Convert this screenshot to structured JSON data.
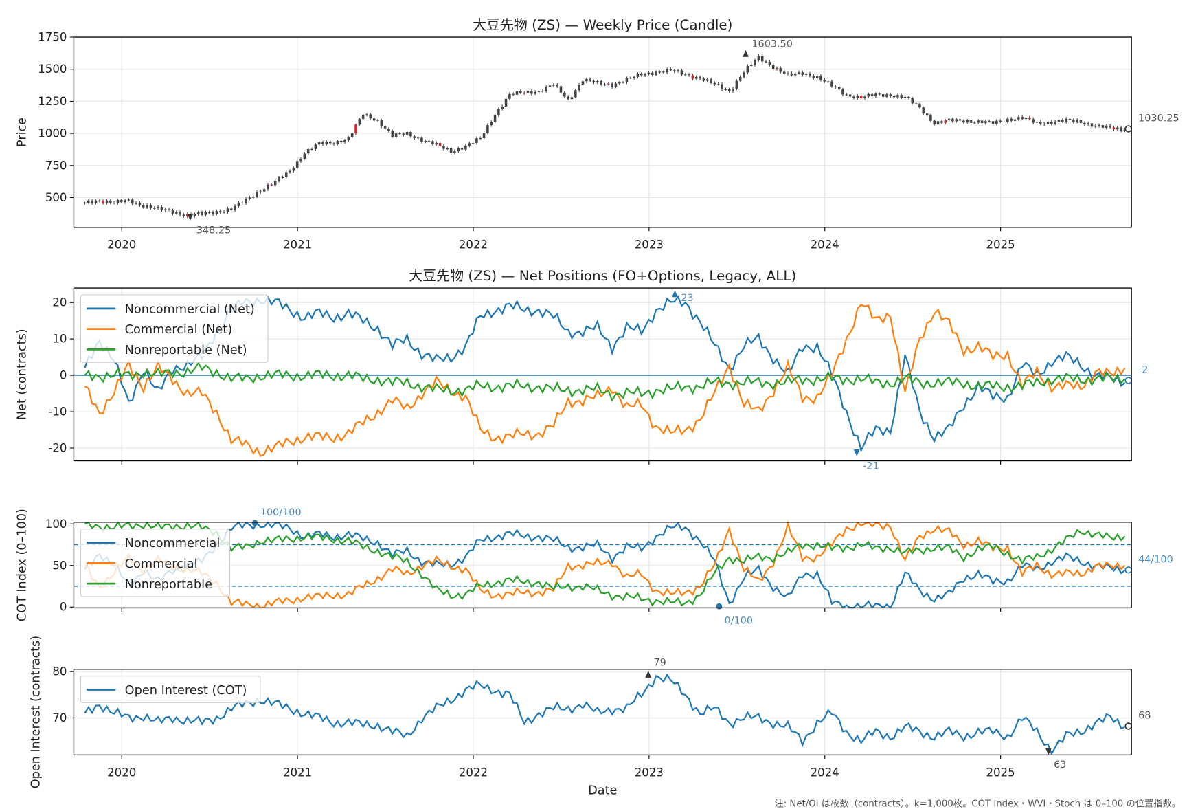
{
  "chart_data": [
    {
      "type": "candlestick",
      "title": "大豆先物 (ZS) — Weekly Price (Candle)",
      "ylabel": "Price",
      "xlabel": "",
      "ylim": [
        268,
        1750
      ],
      "yticks": [
        "500",
        "750",
        "1000",
        "1250",
        "1500",
        "1750"
      ],
      "xticks": [
        "2020",
        "2021",
        "2022",
        "2023",
        "2024",
        "2025"
      ],
      "start": "2019-10",
      "frequency": "monthly close (approx.)",
      "values": [
        460,
        480,
        460,
        475,
        440,
        410,
        390,
        360,
        370,
        390,
        410,
        480,
        560,
        620,
        710,
        850,
        920,
        930,
        960,
        1150,
        1100,
        980,
        1000,
        950,
        910,
        860,
        900,
        960,
        1150,
        1300,
        1320,
        1330,
        1380,
        1260,
        1420,
        1390,
        1380,
        1420,
        1460,
        1480,
        1490,
        1460,
        1430,
        1380,
        1330,
        1480,
        1590,
        1520,
        1450,
        1470,
        1440,
        1370,
        1300,
        1280,
        1300,
        1300,
        1280,
        1200,
        1080,
        1100,
        1100,
        1090,
        1080,
        1110,
        1120,
        1080,
        1090,
        1100,
        1090,
        1060,
        1040,
        1030
      ],
      "annotations": {
        "max": "1603.50",
        "min": "348.25",
        "last": "1030.25"
      }
    },
    {
      "type": "line",
      "title": "大豆先物 (ZS) — Net Positions (FO+Options, Legacy, ALL)",
      "ylabel": "Net (contracts)",
      "ylim": [
        -23.5,
        24
      ],
      "yticks": [
        "-20",
        "-10",
        "0",
        "10",
        "20"
      ],
      "series": [
        {
          "name": "Noncommercial (Net)",
          "color": "#1f77b4",
          "values": [
            2,
            10,
            4,
            -8,
            2,
            -5,
            2,
            3,
            5,
            12,
            18,
            20,
            21,
            20,
            18,
            16,
            17,
            16,
            17,
            15,
            13,
            8,
            10,
            6,
            4,
            5,
            8,
            16,
            18,
            19,
            18,
            18,
            16,
            12,
            12,
            13,
            8,
            13,
            12,
            18,
            20,
            20,
            15,
            8,
            2,
            8,
            10,
            5,
            0,
            8,
            8,
            0,
            -10,
            -20,
            -15,
            -15,
            5,
            -10,
            -17,
            -15,
            -8,
            -3,
            -6,
            -6,
            3,
            0,
            4,
            5,
            3,
            0,
            -1,
            -2
          ]
        },
        {
          "name": "Commercial (Net)",
          "color": "#ff7f0e",
          "values": [
            -3,
            -10,
            -5,
            3,
            -3,
            2,
            -1,
            -5,
            -5,
            -10,
            -18,
            -19,
            -21,
            -20,
            -18,
            -17,
            -17,
            -17,
            -16,
            -13,
            -10,
            -7,
            -9,
            -5,
            -2,
            -4,
            -6,
            -15,
            -17,
            -17,
            -16,
            -16,
            -14,
            -7,
            -7,
            -6,
            -3,
            -9,
            -8,
            -14,
            -16,
            -15,
            -12,
            -5,
            3,
            -8,
            -10,
            -4,
            2,
            -6,
            -6,
            0,
            10,
            20,
            15,
            17,
            -5,
            10,
            18,
            14,
            7,
            8,
            5,
            6,
            -3,
            1,
            -3,
            -3,
            -3,
            1,
            0,
            2
          ]
        },
        {
          "name": "Nonreportable (Net)",
          "color": "#2ca02c",
          "values": [
            0,
            0,
            0,
            0,
            1,
            0,
            1,
            1,
            2,
            1,
            -1,
            -1,
            0,
            0,
            0,
            0,
            0,
            0,
            0,
            -1,
            -1,
            -2,
            -2,
            -3,
            -4,
            -4,
            -4,
            -3,
            -3,
            -3,
            -3,
            -3,
            -4,
            -4,
            -4,
            -4,
            -5,
            -5,
            -5,
            -4,
            -4,
            -3,
            -3,
            -2,
            -2,
            -2,
            -2,
            -2,
            -2,
            -1,
            -1,
            -1,
            -1,
            -1,
            -2,
            -2,
            -1,
            -2,
            -2,
            -2,
            -2,
            -3,
            -3,
            -3,
            -3,
            -2,
            -1,
            -1,
            -1,
            -1,
            -1,
            -1
          ]
        }
      ],
      "zero_line": 0,
      "annotations": {
        "max": "23",
        "min": "-21",
        "last": "-2"
      }
    },
    {
      "type": "line",
      "title": "",
      "ylabel": "COT Index (0–100)",
      "ylim": [
        -1,
        102
      ],
      "yticks": [
        "0",
        "50",
        "100"
      ],
      "reference_lines": [
        25,
        75
      ],
      "series": [
        {
          "name": "Noncommercial",
          "color": "#1f77b4",
          "values": [
            45,
            65,
            50,
            25,
            45,
            30,
            45,
            48,
            55,
            75,
            95,
            98,
            100,
            98,
            95,
            85,
            87,
            85,
            87,
            82,
            78,
            62,
            68,
            55,
            50,
            52,
            60,
            80,
            85,
            88,
            85,
            85,
            80,
            72,
            72,
            74,
            60,
            72,
            70,
            85,
            95,
            96,
            80,
            55,
            5,
            35,
            45,
            25,
            10,
            40,
            40,
            5,
            1,
            1,
            1,
            2,
            40,
            20,
            10,
            15,
            35,
            40,
            30,
            32,
            50,
            45,
            55,
            60,
            55,
            50,
            46,
            44
          ]
        },
        {
          "name": "Commercial",
          "color": "#ff7f0e",
          "values": [
            50,
            25,
            40,
            60,
            45,
            55,
            50,
            45,
            40,
            30,
            5,
            3,
            2,
            5,
            8,
            12,
            12,
            15,
            15,
            25,
            35,
            45,
            40,
            50,
            55,
            50,
            45,
            20,
            15,
            15,
            18,
            18,
            20,
            50,
            50,
            52,
            55,
            35,
            40,
            20,
            15,
            18,
            25,
            50,
            95,
            45,
            30,
            55,
            95,
            60,
            60,
            75,
            95,
            100,
            98,
            99,
            55,
            85,
            95,
            90,
            75,
            80,
            70,
            72,
            40,
            50,
            40,
            40,
            40,
            50,
            48,
            50
          ]
        },
        {
          "name": "Nonreportable",
          "color": "#2ca02c",
          "values": [
            100,
            98,
            95,
            98,
            100,
            95,
            98,
            98,
            95,
            90,
            70,
            72,
            80,
            80,
            82,
            85,
            83,
            82,
            80,
            72,
            68,
            60,
            55,
            40,
            20,
            15,
            15,
            25,
            30,
            32,
            30,
            30,
            22,
            25,
            25,
            20,
            15,
            12,
            10,
            8,
            5,
            5,
            15,
            40,
            60,
            55,
            60,
            60,
            65,
            75,
            75,
            70,
            72,
            75,
            70,
            72,
            65,
            68,
            72,
            70,
            60,
            70,
            72,
            65,
            55,
            60,
            70,
            80,
            92,
            88,
            82,
            85
          ]
        }
      ],
      "annotations": {
        "max": "100/100",
        "min": "0/100",
        "last": "44/100"
      }
    },
    {
      "type": "line",
      "title": "",
      "xlabel": "Date",
      "ylabel": "Open Interest (contracts)",
      "ylim": [
        62,
        80.5
      ],
      "yticks": [
        "70",
        "80"
      ],
      "xticks": [
        "2020",
        "2021",
        "2022",
        "2023",
        "2024",
        "2025"
      ],
      "series": [
        {
          "name": "Open Interest (COT)",
          "color": "#1f77b4",
          "values": [
            71,
            73,
            71,
            70,
            70.5,
            69,
            70,
            69.5,
            69,
            70,
            72,
            73,
            74,
            73,
            72,
            71,
            70,
            69,
            69,
            68.5,
            68.5,
            67,
            66,
            70,
            72,
            74,
            76,
            77,
            76,
            75,
            69,
            71,
            72,
            72,
            73,
            71,
            72,
            72,
            75,
            79,
            78,
            75,
            71,
            72,
            69,
            70,
            70,
            69,
            68,
            65,
            69,
            71,
            67,
            65,
            67,
            66,
            68,
            67,
            66,
            67,
            66,
            67,
            67,
            66,
            70,
            67,
            63,
            66,
            67,
            69,
            70,
            68
          ]
        }
      ],
      "annotations": {
        "max": "79",
        "min": "63",
        "last": "68"
      }
    }
  ],
  "footnote": "注: Net/OI は枚数（contracts）。k=1,000枚。COT Index・WVI・Stoch は 0–100 の位置指数。"
}
